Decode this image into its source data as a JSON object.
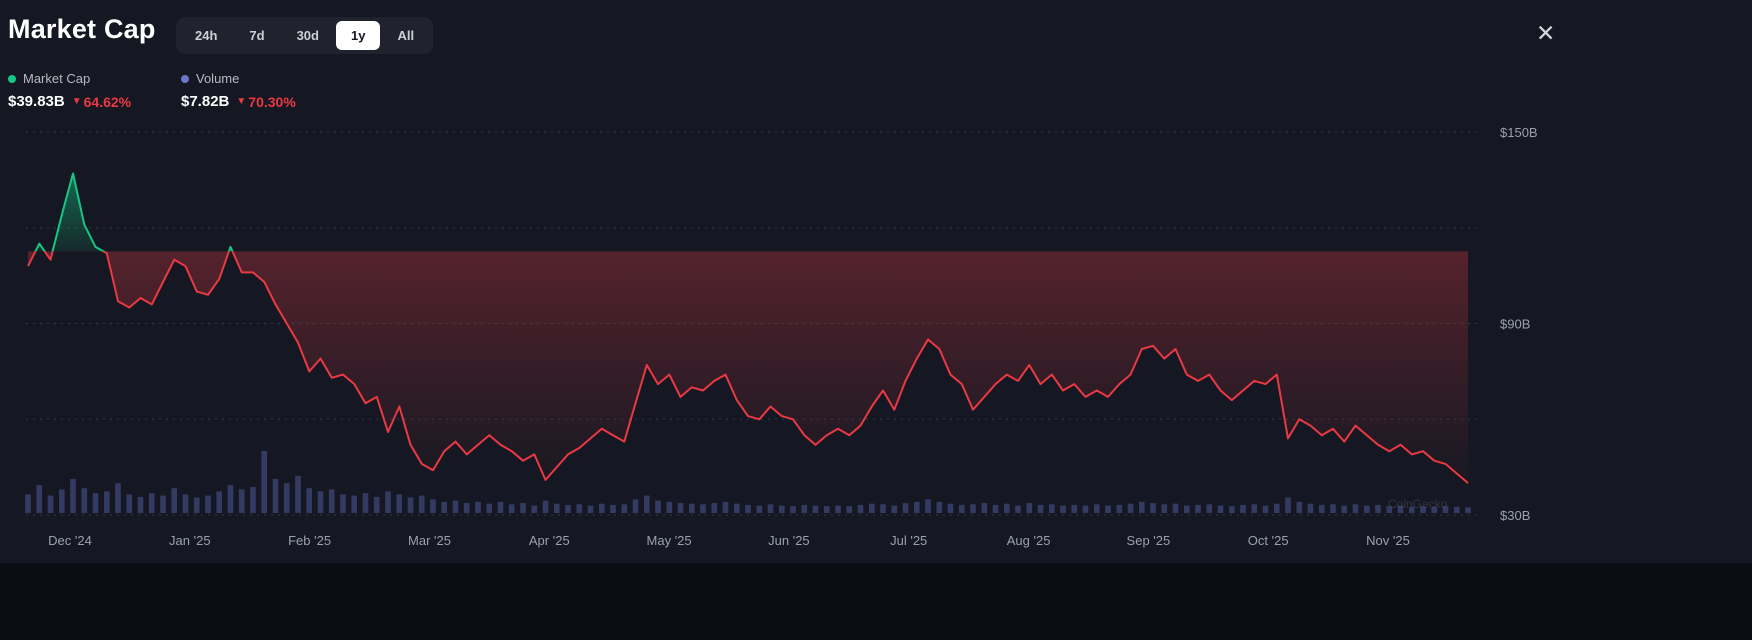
{
  "header": {
    "title": "Market Cap"
  },
  "icons": {
    "close": "✕",
    "down_triangle": "▼"
  },
  "watermark": "CoinGecko",
  "time_ranges": {
    "options": [
      "24h",
      "7d",
      "30d",
      "1y",
      "All"
    ],
    "active": "1y"
  },
  "legend": [
    {
      "label": "Market Cap",
      "value": "$39.83B",
      "change": "64.62%",
      "direction": "down",
      "dot_color": "#16c784"
    },
    {
      "label": "Volume",
      "value": "$7.82B",
      "change": "70.30%",
      "direction": "down",
      "dot_color": "#6c77c9"
    }
  ],
  "chart_data": {
    "type": "line",
    "title": "Market Cap (1y)",
    "x_labels": [
      "Dec '24",
      "Jan '25",
      "Feb '25",
      "Mar '25",
      "Apr '25",
      "May '25",
      "Jun '25",
      "Jul '25",
      "Aug '25",
      "Sep '25",
      "Oct '25",
      "Nov '25"
    ],
    "y_axis_labels": [
      {
        "value": 150,
        "label": "$150B"
      },
      {
        "value": 90,
        "label": "$90B"
      },
      {
        "value": 30,
        "label": "$30B"
      }
    ],
    "gridline_values": [
      150,
      120,
      90,
      60,
      30
    ],
    "ylim": [
      30,
      150
    ],
    "ylabel_unit": "$B",
    "baseline_value": 112.6,
    "grid": "horizontal-dotted",
    "legend_position": "top-left",
    "series": [
      {
        "name": "Market Cap",
        "unit": "$B",
        "values": [
          108,
          115,
          110,
          124,
          137,
          121,
          114,
          112,
          97,
          95,
          98,
          96,
          103,
          110,
          108,
          100,
          99,
          104,
          114,
          106,
          106,
          103,
          96,
          90,
          84,
          75,
          79,
          73,
          74,
          71,
          65,
          67,
          56,
          64,
          52,
          46,
          44,
          50,
          53,
          49,
          52,
          55,
          52,
          50,
          47,
          49,
          41,
          45,
          49,
          51,
          54,
          57,
          55,
          53,
          65,
          77,
          71,
          74,
          67,
          70,
          69,
          72,
          74,
          66,
          61,
          60,
          64,
          61,
          60,
          55,
          52,
          55,
          57,
          55,
          58,
          64,
          69,
          63,
          72,
          79,
          85,
          82,
          74,
          71,
          63,
          67,
          71,
          74,
          72,
          77,
          71,
          74,
          69,
          71,
          67,
          69,
          67,
          71,
          74,
          82,
          83,
          79,
          82,
          74,
          72,
          74,
          69,
          66,
          69,
          72,
          71,
          74,
          54,
          60,
          58,
          55,
          57,
          53,
          58,
          55,
          52,
          50,
          52,
          49,
          50,
          47,
          46,
          43,
          40
        ]
      },
      {
        "name": "Volume",
        "unit": "relative",
        "values": [
          30,
          45,
          28,
          38,
          55,
          40,
          32,
          35,
          48,
          30,
          26,
          32,
          28,
          40,
          30,
          25,
          28,
          35,
          45,
          38,
          42,
          100,
          55,
          48,
          60,
          40,
          35,
          38,
          30,
          28,
          32,
          26,
          35,
          30,
          25,
          28,
          22,
          18,
          20,
          16,
          18,
          15,
          18,
          14,
          16,
          12,
          20,
          15,
          13,
          14,
          12,
          15,
          13,
          14,
          22,
          28,
          20,
          18,
          16,
          15,
          14,
          16,
          18,
          15,
          13,
          12,
          14,
          12,
          11,
          13,
          12,
          11,
          12,
          11,
          13,
          15,
          14,
          12,
          16,
          18,
          22,
          18,
          15,
          13,
          14,
          16,
          13,
          15,
          12,
          16,
          13,
          14,
          12,
          13,
          12,
          14,
          12,
          13,
          15,
          18,
          16,
          14,
          15,
          12,
          13,
          14,
          12,
          11,
          13,
          14,
          12,
          15,
          25,
          18,
          15,
          13,
          14,
          12,
          14,
          12,
          13,
          11,
          12,
          10,
          11,
          10,
          11,
          10,
          9
        ]
      }
    ],
    "colors": {
      "up": "#16c784",
      "down": "#ea3943",
      "volume_bar": "#4a5490",
      "grid": "#4a5160",
      "axis_text": "#9ba0aa"
    }
  }
}
